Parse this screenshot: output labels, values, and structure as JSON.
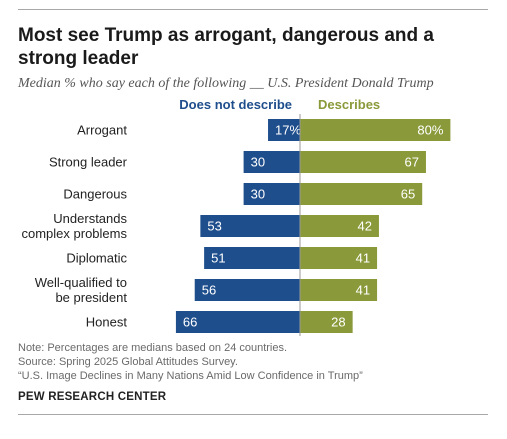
{
  "title": "Most see Trump as arrogant, dangerous and a strong leader",
  "subtitle": "Median % who say each of the following __ U.S. President Donald Trump",
  "chart_data": {
    "type": "bar",
    "orientation": "horizontal-diverging",
    "categories": [
      [
        "Arrogant"
      ],
      [
        "Strong leader"
      ],
      [
        "Dangerous"
      ],
      [
        "Understands",
        "complex problems"
      ],
      [
        "Diplomatic"
      ],
      [
        "Well-qualified to",
        "be president"
      ],
      [
        "Honest"
      ]
    ],
    "series": [
      {
        "name": "Does not describe",
        "values": [
          17,
          30,
          30,
          53,
          51,
          56,
          66
        ],
        "labels": [
          "17%",
          "30",
          "30",
          "53",
          "51",
          "56",
          "66"
        ],
        "color": "#1f4e8c"
      },
      {
        "name": "Describes",
        "values": [
          80,
          67,
          65,
          42,
          41,
          41,
          28
        ],
        "labels": [
          "80%",
          "67",
          "65",
          "42",
          "41",
          "41",
          "28"
        ],
        "color": "#8a9a3a"
      }
    ],
    "xlim": [
      0,
      100
    ]
  },
  "notes": [
    "Note: Percentages are medians based on 24 countries.",
    "Source: Spring 2025 Global Attitudes Survey.",
    "“U.S. Image Declines in Many Nations Amid Low Confidence in Trump”"
  ],
  "source_org": "PEW RESEARCH CENTER"
}
